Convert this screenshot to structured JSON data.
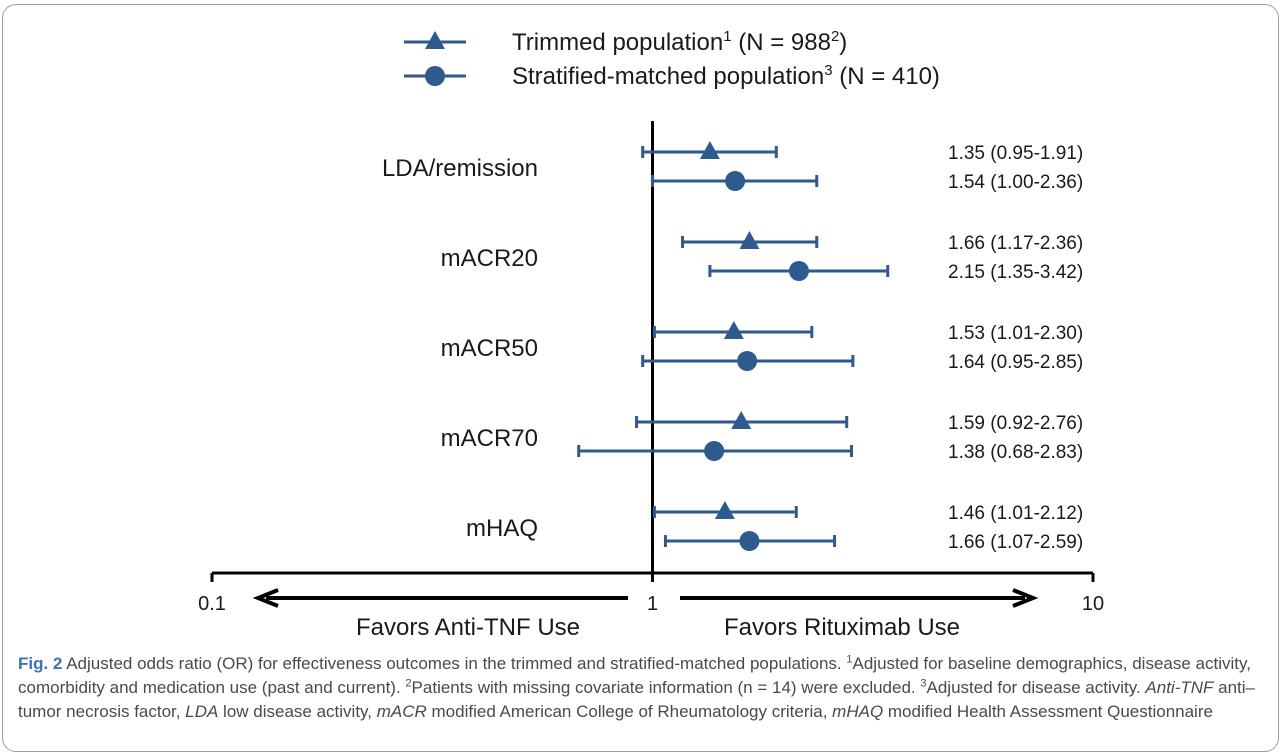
{
  "chart_data": {
    "type": "forest",
    "x_scale": "log",
    "xlim": [
      0.1,
      10
    ],
    "x_ticks": [
      0.1,
      1,
      10
    ],
    "x_tick_labels": [
      "0.1",
      "1",
      "10"
    ],
    "reference_line": 1,
    "direction_left": "Favors Anti-TNF Use",
    "direction_right": "Favors Rituximab Use",
    "legend": {
      "position": "top",
      "items": [
        {
          "marker": "triangle",
          "label": "Trimmed population",
          "sup1": "1",
          "mid": " (N = 988",
          "sup2": "2",
          "end": ")"
        },
        {
          "marker": "circle",
          "label": "Stratified-matched population",
          "sup1": "3",
          "mid": " (N = 410)",
          "sup2": "",
          "end": ""
        }
      ]
    },
    "categories": [
      "LDA/remission",
      "mACR20",
      "mACR50",
      "mACR70",
      "mHAQ"
    ],
    "series": [
      {
        "name": "Trimmed population",
        "marker": "triangle",
        "or": [
          1.35,
          1.66,
          1.53,
          1.59,
          1.46
        ],
        "lower": [
          0.95,
          1.17,
          1.01,
          0.92,
          1.01
        ],
        "upper": [
          1.91,
          2.36,
          2.3,
          2.76,
          2.12
        ],
        "labels": [
          "1.35 (0.95-1.91)",
          "1.66 (1.17-2.36)",
          "1.53 (1.01-2.30)",
          "1.59 (0.92-2.76)",
          "1.46 (1.01-2.12)"
        ]
      },
      {
        "name": "Stratified-matched population",
        "marker": "circle",
        "or": [
          1.54,
          2.15,
          1.64,
          1.38,
          1.66
        ],
        "lower": [
          1.0,
          1.35,
          0.95,
          0.68,
          1.07
        ],
        "upper": [
          2.36,
          3.42,
          2.85,
          2.83,
          2.59
        ],
        "labels": [
          "1.54 (1.00-2.36)",
          "2.15 (1.35-3.42)",
          "1.64 (0.95-2.85)",
          "1.38 (0.68-2.83)",
          "1.66 (1.07-2.59)"
        ]
      }
    ],
    "colors": {
      "marker": "#2e5a8e",
      "axis": "#000000",
      "text": "#1a1a1a"
    }
  },
  "caption": {
    "fig_label": "Fig. 2",
    "parts": [
      {
        "t": "text",
        "v": " Adjusted odds ratio (OR) for effectiveness outcomes in the trimmed and stratified-matched populations. "
      },
      {
        "t": "sup",
        "v": "1"
      },
      {
        "t": "text",
        "v": "Adjusted for baseline demographics, disease activity, comorbidity and medication use (past and current). "
      },
      {
        "t": "sup",
        "v": "2"
      },
      {
        "t": "text",
        "v": "Patients with missing covariate information (n = 14) were excluded. "
      },
      {
        "t": "sup",
        "v": "3"
      },
      {
        "t": "text",
        "v": "Adjusted for disease activity. "
      },
      {
        "t": "abbr",
        "v": "Anti-TNF"
      },
      {
        "t": "text",
        "v": " anti–tumor necrosis factor, "
      },
      {
        "t": "abbr",
        "v": "LDA"
      },
      {
        "t": "text",
        "v": " low disease activity, "
      },
      {
        "t": "abbr",
        "v": "mACR"
      },
      {
        "t": "text",
        "v": " modified American College of Rheumatology criteria, "
      },
      {
        "t": "abbr",
        "v": "mHAQ"
      },
      {
        "t": "text",
        "v": " modified Health Assessment Questionnaire"
      }
    ]
  }
}
